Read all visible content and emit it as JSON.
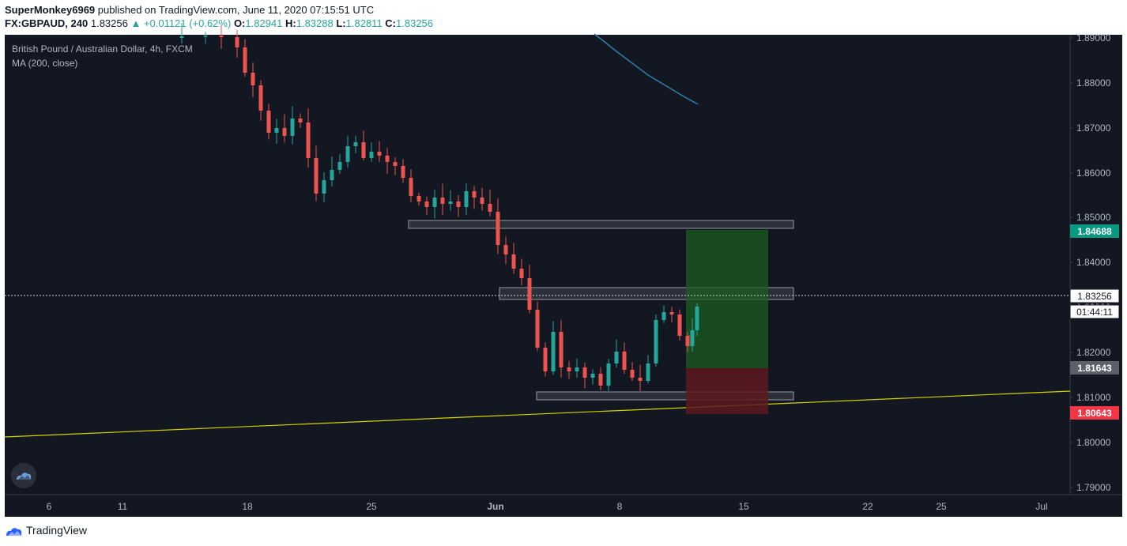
{
  "publisher": {
    "user": "SuperMonkey6969",
    "text": " published on TradingView.com, June 11, 2020 07:15:51 UTC"
  },
  "quote": {
    "symbol": "FX:GBPAUD, 240",
    "last": "1.83256",
    "change": "▲ +0.01121 (+0.62%)",
    "o_label": "O:",
    "open": "1.82941",
    "h_label": "H:",
    "high": "1.83288",
    "l_label": "L:",
    "low": "1.82811",
    "c_label": "C:",
    "close": "1.83256"
  },
  "legend": {
    "title": "British Pound / Australian Dollar, 4h, FXCM",
    "indicator": "MA (200, close)"
  },
  "price_axis": {
    "ticks": [
      "1.89000",
      "1.88000",
      "1.87000",
      "1.86000",
      "1.85000",
      "1.84000",
      "1.83000",
      "1.82000",
      "1.81000",
      "1.80000",
      "1.79000"
    ],
    "current_price": "1.83256",
    "countdown": "01:44:11",
    "take_profit": "1.84688",
    "entry": "1.81643",
    "stop_loss": "1.80643"
  },
  "time_axis": {
    "ticks": [
      "6",
      "11",
      "18",
      "25",
      "Jun",
      "8",
      "15",
      "22",
      "25",
      "Jul"
    ]
  },
  "colors": {
    "background": "#131722",
    "up": "#26a69a",
    "down": "#ef5350",
    "ma_line": "#2e7fa3",
    "trendline": "#d4d400",
    "profit_zone": "#1b5e20",
    "loss_zone": "#5d1a1f",
    "take_profit": "#089981",
    "stop_loss": "#f23645"
  },
  "footer": {
    "brand": "TradingView",
    "icon": "tradingview-logo-icon"
  }
}
